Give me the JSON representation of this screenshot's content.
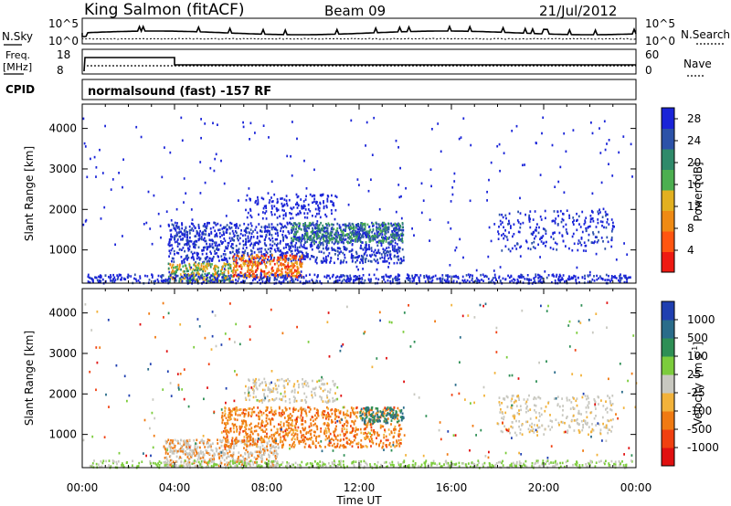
{
  "header": {
    "station": "King Salmon (fitACF)",
    "beam": "Beam 09",
    "date": "21/Jul/2012"
  },
  "summary_panels": {
    "nsky_label": "N.Sky",
    "nsky_ticks": [
      "10^5",
      "10^0"
    ],
    "nsearch_label": "N.Search",
    "nsearch_ticks": [
      "10^5",
      "10^0"
    ],
    "freq_label": "Freq.",
    "freq_unit": "[MHz]",
    "freq_ticks": [
      "18",
      "8"
    ],
    "nave_label": "Nave",
    "nave_ticks": [
      "60",
      "0"
    ],
    "cpid_label": "CPID",
    "cpid_text": "normalsound (fast) -157 RF"
  },
  "chart_data": [
    {
      "type": "heatmap",
      "title": "",
      "ylabel": "Slant Range [km]",
      "xlabel": "",
      "x_ticks": [
        "00:00",
        "04:00",
        "08:00",
        "12:00",
        "16:00",
        "20:00",
        "00:00"
      ],
      "y_ticks": [
        1000,
        2000,
        3000,
        4000
      ],
      "ylim": [
        180,
        4600
      ],
      "colorbar_label": "Power [dB]",
      "colorbar_ticks": [
        4,
        8,
        12,
        16,
        20,
        24,
        28
      ],
      "colorbar_range": [
        0,
        30
      ],
      "colors": [
        "#1a24d8",
        "#2c52a8",
        "#2f8a6a",
        "#4caf50",
        "#e2b020",
        "#ef8a14",
        "#ff5510",
        "#ee1a12"
      ]
    },
    {
      "type": "heatmap",
      "title": "",
      "ylabel": "Slant Range [km]",
      "xlabel": "Time UT",
      "x_ticks": [
        "00:00",
        "04:00",
        "08:00",
        "12:00",
        "16:00",
        "20:00",
        "00:00"
      ],
      "y_ticks": [
        1000,
        2000,
        3000,
        4000
      ],
      "ylim": [
        180,
        4600
      ],
      "colorbar_label": "Velocity",
      "colorbar_unit": "[m s",
      "colorbar_unit_sup": "-1",
      "colorbar_unit_close": "]",
      "colorbar_ticks": [
        "1000",
        "500",
        "100",
        "25",
        "-25",
        "-100",
        "-500",
        "-1000"
      ],
      "colors": [
        "#1f3fb0",
        "#2a6c8a",
        "#2e8f55",
        "#7ccc3c",
        "#c8c8c0",
        "#f2b23a",
        "#f07a12",
        "#f04010",
        "#e01010"
      ]
    }
  ]
}
